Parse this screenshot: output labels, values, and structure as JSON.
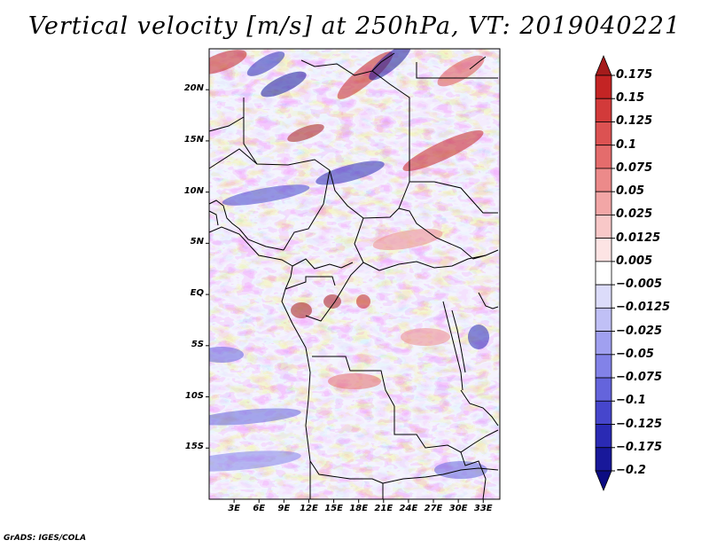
{
  "title": "Vertical velocity [m/s] at 250hPa, VT: 2019040221",
  "credit": "GrADS: IGES/COLA",
  "map": {
    "lon_range": [
      0,
      35
    ],
    "lat_range": [
      -20,
      24
    ],
    "lat_ticks": [
      {
        "value": 20,
        "label": "20N"
      },
      {
        "value": 15,
        "label": "15N"
      },
      {
        "value": 10,
        "label": "10N"
      },
      {
        "value": 5,
        "label": "5N"
      },
      {
        "value": 0,
        "label": "EQ"
      },
      {
        "value": -5,
        "label": "5S"
      },
      {
        "value": -10,
        "label": "10S"
      },
      {
        "value": -15,
        "label": "15S"
      }
    ],
    "lon_ticks": [
      {
        "value": 3,
        "label": "3E"
      },
      {
        "value": 6,
        "label": "6E"
      },
      {
        "value": 9,
        "label": "9E"
      },
      {
        "value": 12,
        "label": "12E"
      },
      {
        "value": 15,
        "label": "15E"
      },
      {
        "value": 18,
        "label": "18E"
      },
      {
        "value": 21,
        "label": "21E"
      },
      {
        "value": 24,
        "label": "24E"
      },
      {
        "value": 27,
        "label": "27E"
      },
      {
        "value": 30,
        "label": "30E"
      },
      {
        "value": 33,
        "label": "33E"
      }
    ]
  },
  "colorbar": {
    "levels": [
      "0.175",
      "0.15",
      "0.125",
      "0.1",
      "0.075",
      "0.05",
      "0.025",
      "0.0125",
      "0.005",
      "−0.005",
      "−0.0125",
      "−0.025",
      "−0.05",
      "−0.075",
      "−0.1",
      "−0.125",
      "−0.175",
      "−0.2"
    ],
    "colors": [
      "#a51b1b",
      "#c42424",
      "#d23a3a",
      "#dc5252",
      "#e46c6c",
      "#ec8a8a",
      "#f2a6a6",
      "#f8c8c8",
      "#fde4e4",
      "#ffffff",
      "#dcdcfa",
      "#c0c0f6",
      "#a0a0f0",
      "#8282e8",
      "#6464dc",
      "#4646cc",
      "#2a2ab4",
      "#18189a",
      "#0c0c82"
    ]
  }
}
